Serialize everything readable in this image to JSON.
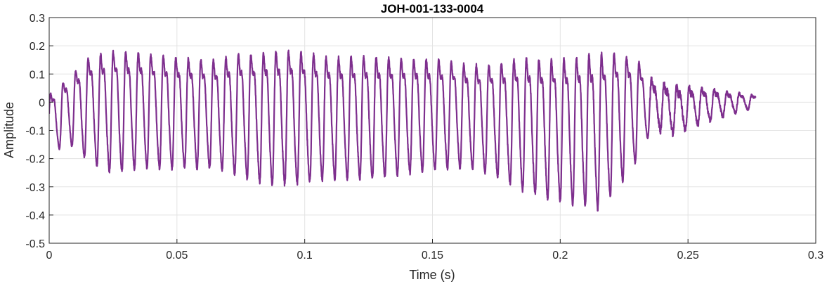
{
  "chart_data": {
    "type": "line",
    "title": "JOH-001-133-0004",
    "xlabel": "Time (s)",
    "ylabel": "Amplitude",
    "xlim": [
      0,
      0.3
    ],
    "ylim": [
      -0.5,
      0.3
    ],
    "xticks": [
      0,
      0.05,
      0.1,
      0.15,
      0.2,
      0.25,
      0.3
    ],
    "xtick_labels": [
      "0",
      "0.05",
      "0.1",
      "0.15",
      "0.2",
      "0.25",
      "0.3"
    ],
    "yticks": [
      -0.5,
      -0.4,
      -0.3,
      -0.2,
      -0.1,
      0,
      0.1,
      0.2,
      0.3
    ],
    "ytick_labels": [
      "-0.5",
      "-0.4",
      "-0.3",
      "-0.2",
      "-0.1",
      "0",
      "0.1",
      "0.2",
      "0.3"
    ],
    "grid": true,
    "series": [
      {
        "color": "#7E2F8E",
        "cycle_period_s": 0.0049,
        "signal_end_s": 0.2765,
        "envelope": [
          {
            "t": 0.0,
            "max": 0.06,
            "min": -0.19
          },
          {
            "t": 0.008,
            "max": 0.13,
            "min": -0.16
          },
          {
            "t": 0.016,
            "max": 0.22,
            "min": -0.23
          },
          {
            "t": 0.025,
            "max": 0.25,
            "min": -0.27
          },
          {
            "t": 0.035,
            "max": 0.24,
            "min": -0.25
          },
          {
            "t": 0.05,
            "max": 0.22,
            "min": -0.25
          },
          {
            "t": 0.065,
            "max": 0.21,
            "min": -0.25
          },
          {
            "t": 0.075,
            "max": 0.24,
            "min": -0.28
          },
          {
            "t": 0.085,
            "max": 0.25,
            "min": -0.31
          },
          {
            "t": 0.095,
            "max": 0.26,
            "min": -0.31
          },
          {
            "t": 0.11,
            "max": 0.23,
            "min": -0.29
          },
          {
            "t": 0.125,
            "max": 0.23,
            "min": -0.29
          },
          {
            "t": 0.14,
            "max": 0.22,
            "min": -0.27
          },
          {
            "t": 0.155,
            "max": 0.21,
            "min": -0.25
          },
          {
            "t": 0.165,
            "max": 0.19,
            "min": -0.25
          },
          {
            "t": 0.175,
            "max": 0.2,
            "min": -0.28
          },
          {
            "t": 0.185,
            "max": 0.23,
            "min": -0.33
          },
          {
            "t": 0.195,
            "max": 0.23,
            "min": -0.36
          },
          {
            "t": 0.205,
            "max": 0.24,
            "min": -0.38
          },
          {
            "t": 0.215,
            "max": 0.26,
            "min": -0.4
          },
          {
            "t": 0.222,
            "max": 0.25,
            "min": -0.33
          },
          {
            "t": 0.23,
            "max": 0.21,
            "min": -0.22
          },
          {
            "t": 0.236,
            "max": 0.1,
            "min": -0.1
          },
          {
            "t": 0.245,
            "max": 0.08,
            "min": -0.12
          },
          {
            "t": 0.255,
            "max": 0.07,
            "min": -0.08
          },
          {
            "t": 0.265,
            "max": 0.05,
            "min": -0.05
          },
          {
            "t": 0.2765,
            "max": 0.03,
            "min": -0.02
          }
        ]
      }
    ]
  }
}
